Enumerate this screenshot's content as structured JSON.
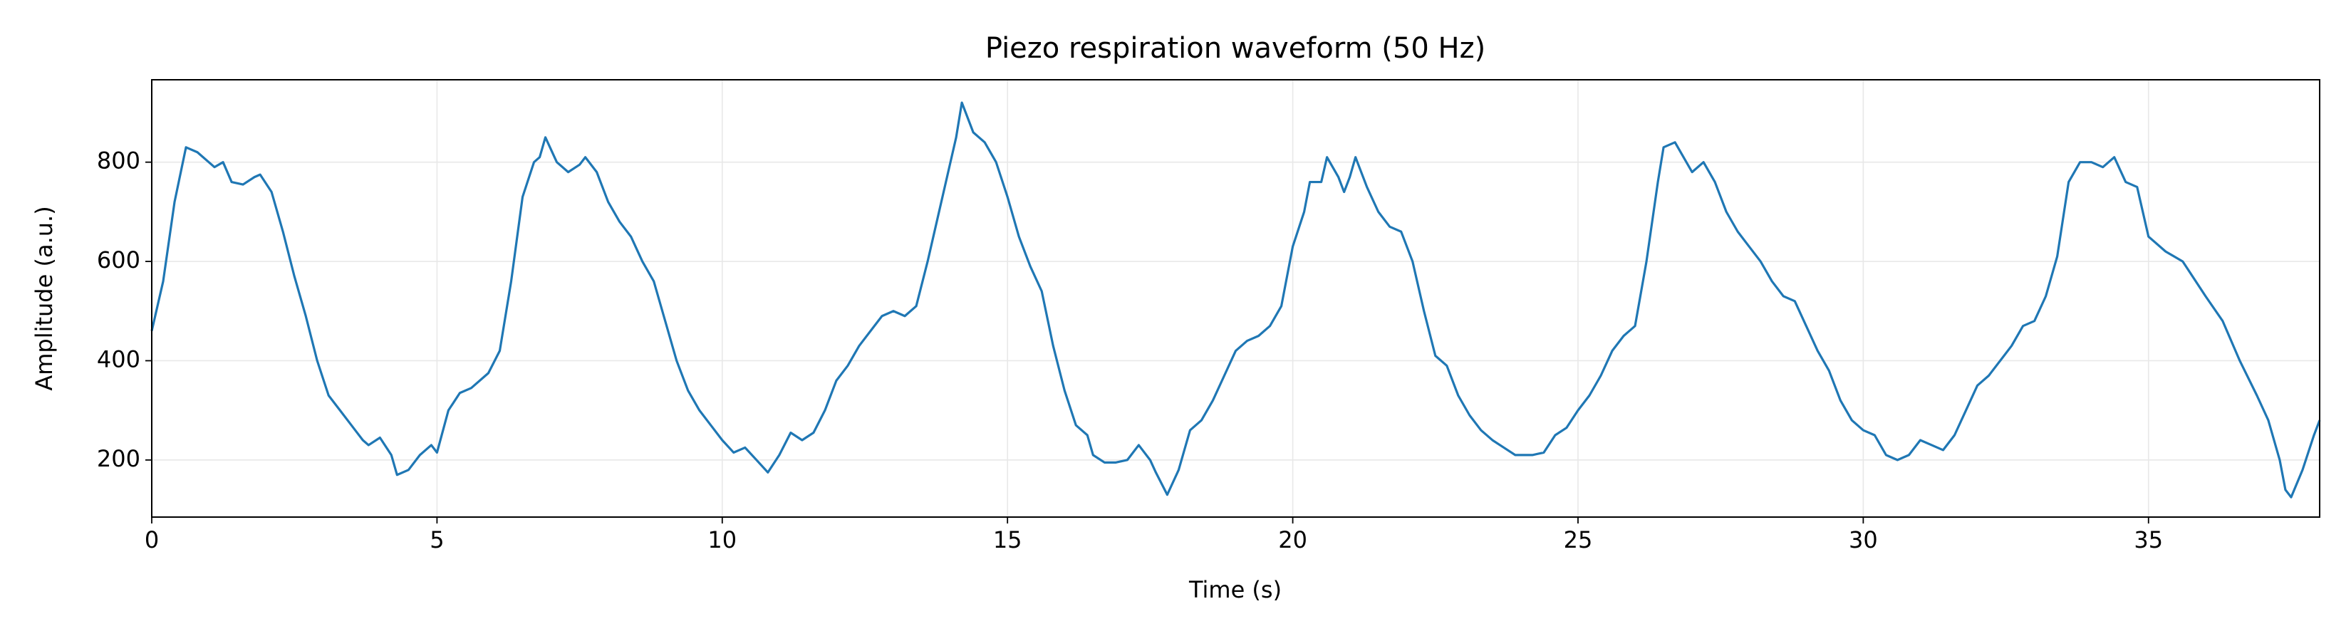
{
  "chart_data": {
    "type": "line",
    "title": "Piezo respiration waveform (50 Hz)",
    "xlabel": "Time (s)",
    "ylabel": "Amplitude (a.u.)",
    "color": "#1f77b4",
    "grid": true,
    "xlim": [
      0,
      38
    ],
    "xticks": [
      0,
      5,
      10,
      15,
      20,
      25,
      30,
      35
    ],
    "ylim": [
      85,
      966
    ],
    "yticks": [
      200,
      400,
      600,
      800
    ],
    "x": [
      0,
      0.2,
      0.4,
      0.6,
      0.8,
      1.0,
      1.1,
      1.25,
      1.4,
      1.6,
      1.8,
      1.9,
      2.1,
      2.3,
      2.5,
      2.7,
      2.9,
      3.1,
      3.3,
      3.5,
      3.7,
      3.8,
      4.0,
      4.2,
      4.3,
      4.5,
      4.7,
      4.9,
      5.0,
      5.2,
      5.4,
      5.6,
      5.9,
      6.1,
      6.3,
      6.5,
      6.7,
      6.8,
      6.9,
      7.1,
      7.3,
      7.5,
      7.6,
      7.8,
      8.0,
      8.2,
      8.4,
      8.6,
      8.8,
      9.0,
      9.2,
      9.4,
      9.6,
      9.8,
      10.0,
      10.2,
      10.4,
      10.6,
      10.8,
      11.0,
      11.2,
      11.4,
      11.6,
      11.8,
      12.0,
      12.2,
      12.4,
      12.6,
      12.8,
      13.0,
      13.2,
      13.4,
      13.6,
      13.8,
      14.0,
      14.1,
      14.2,
      14.4,
      14.6,
      14.8,
      15.0,
      15.2,
      15.4,
      15.6,
      15.8,
      16.0,
      16.2,
      16.4,
      16.5,
      16.7,
      16.9,
      17.1,
      17.3,
      17.5,
      17.6,
      17.8,
      18.0,
      18.2,
      18.4,
      18.6,
      18.8,
      19.0,
      19.2,
      19.4,
      19.6,
      19.8,
      20.0,
      20.2,
      20.3,
      20.5,
      20.6,
      20.8,
      20.9,
      21.0,
      21.1,
      21.3,
      21.5,
      21.7,
      21.9,
      22.1,
      22.3,
      22.5,
      22.7,
      22.9,
      23.1,
      23.3,
      23.5,
      23.7,
      23.9,
      24.2,
      24.4,
      24.6,
      24.8,
      25.0,
      25.2,
      25.4,
      25.6,
      25.8,
      26.0,
      26.2,
      26.4,
      26.5,
      26.7,
      26.9,
      27.0,
      27.2,
      27.4,
      27.6,
      27.8,
      28.0,
      28.2,
      28.4,
      28.6,
      28.8,
      29.0,
      29.2,
      29.4,
      29.6,
      29.8,
      30.0,
      30.2,
      30.4,
      30.6,
      30.8,
      31.0,
      31.2,
      31.4,
      31.6,
      31.8,
      32.0,
      32.2,
      32.4,
      32.6,
      32.8,
      33.0,
      33.2,
      33.4,
      33.6,
      33.8,
      34.0,
      34.2,
      34.4,
      34.6,
      34.8,
      35.0,
      35.3,
      35.6,
      36.0,
      36.3,
      36.6,
      36.9,
      37.1,
      37.3,
      37.4,
      37.5,
      37.7,
      37.9,
      38.0
    ],
    "values": [
      460,
      560,
      720,
      830,
      820,
      800,
      790,
      800,
      760,
      755,
      770,
      775,
      740,
      660,
      570,
      490,
      400,
      330,
      300,
      270,
      240,
      230,
      245,
      210,
      170,
      180,
      210,
      230,
      215,
      300,
      335,
      345,
      375,
      420,
      560,
      730,
      800,
      810,
      850,
      800,
      780,
      795,
      810,
      780,
      720,
      680,
      650,
      600,
      560,
      480,
      400,
      340,
      300,
      270,
      240,
      215,
      225,
      200,
      175,
      210,
      255,
      240,
      255,
      300,
      360,
      390,
      430,
      460,
      490,
      500,
      490,
      510,
      600,
      700,
      800,
      850,
      920,
      860,
      840,
      800,
      730,
      650,
      590,
      540,
      430,
      340,
      270,
      250,
      210,
      195,
      195,
      200,
      230,
      200,
      175,
      130,
      180,
      260,
      280,
      320,
      370,
      420,
      440,
      450,
      470,
      510,
      630,
      700,
      760,
      760,
      810,
      770,
      740,
      770,
      810,
      750,
      700,
      670,
      660,
      600,
      500,
      410,
      390,
      330,
      290,
      260,
      240,
      225,
      210,
      210,
      215,
      250,
      265,
      300,
      330,
      370,
      420,
      450,
      470,
      600,
      760,
      830,
      840,
      800,
      780,
      800,
      760,
      700,
      660,
      630,
      600,
      560,
      530,
      520,
      470,
      420,
      380,
      320,
      280,
      260,
      250,
      210,
      200,
      210,
      240,
      230,
      220,
      250,
      300,
      350,
      370,
      400,
      430,
      470,
      480,
      530,
      610,
      760,
      800,
      800,
      790,
      810,
      760,
      750,
      650,
      620,
      600,
      530,
      480,
      400,
      330,
      280,
      200,
      140,
      125,
      180,
      250,
      280
    ]
  }
}
